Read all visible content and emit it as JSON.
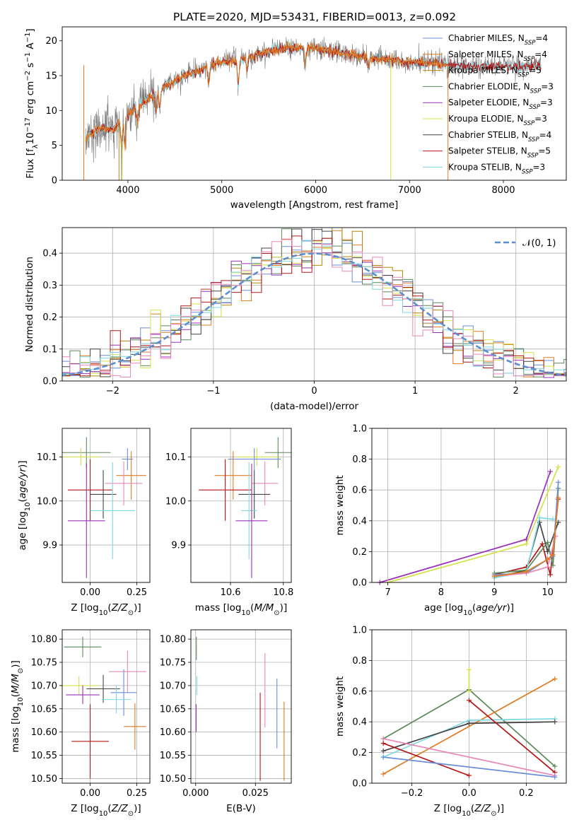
{
  "colors": {
    "Chabrier MILES": "#6a8fd8",
    "Salpeter MILES": "#e07b23",
    "Kroupa MILES": "#b8860b",
    "Chabrier ELODIE": "#5a8a5a",
    "Salpeter ELODIE": "#9a30b8",
    "Kroupa ELODIE": "#d4e04a",
    "Chabrier STELIB": "#444444",
    "Salpeter STELIB": "#b01818",
    "Kroupa STELIB": "#7fd8e0",
    "pink": "#e888b8",
    "gauss": "#5b8fd0",
    "data": "#777777"
  },
  "chart_data": [
    {
      "id": "spectrum",
      "type": "line",
      "title": "PLATE=2020, MJD=53431, FIBERID=0013, z=0.092",
      "xlabel": "wavelength [Angstrom, rest frame]",
      "ylabel": "Flux [fλ10⁻¹⁷ erg cm⁻² s⁻¹ A⁻¹]",
      "xlim": [
        3300,
        8670
      ],
      "ylim": [
        0,
        22
      ],
      "xticks": [
        "4000",
        "5000",
        "6000",
        "7000",
        "8000"
      ],
      "yticks": [
        "0",
        "5",
        "10",
        "15",
        "20"
      ],
      "legend": [
        "Chabrier MILES, N_SSP=4",
        "Salpeter MILES, N_SSP=4",
        "Kroupa MILES, N_SSP=5",
        "Chabrier ELODIE, N_SSP=3",
        "Salpeter ELODIE, N_SSP=3",
        "Kroupa ELODIE, N_SSP=3",
        "Chabrier STELIB, N_SSP=4",
        "Salpeter STELIB, N_SSP=5",
        "Kroupa STELIB, N_SSP=3"
      ],
      "continuum": [
        [
          3550,
          6
        ],
        [
          3700,
          7.5
        ],
        [
          3850,
          7.2
        ],
        [
          4000,
          9.5
        ],
        [
          4200,
          11.5
        ],
        [
          4400,
          13.5
        ],
        [
          4600,
          15
        ],
        [
          4800,
          16
        ],
        [
          5000,
          17
        ],
        [
          5200,
          17.3
        ],
        [
          5500,
          18.5
        ],
        [
          5700,
          19
        ],
        [
          6000,
          19
        ],
        [
          6300,
          18.2
        ],
        [
          6600,
          17.5
        ],
        [
          7000,
          17
        ],
        [
          7400,
          16.5
        ],
        [
          7800,
          16.3
        ],
        [
          8200,
          16.3
        ],
        [
          8400,
          16.5
        ]
      ]
    },
    {
      "id": "residuals",
      "type": "histogram",
      "xlabel": "(data-model)/error",
      "ylabel": "Normed distribution",
      "xlim": [
        -2.5,
        2.5
      ],
      "ylim": [
        0,
        0.48
      ],
      "xticks": [
        "−2",
        "−1",
        "0",
        "1",
        "2"
      ],
      "yticks": [
        "0.0",
        "0.1",
        "0.2",
        "0.3",
        "0.4"
      ],
      "legend": [
        "𝒩(0, 1)"
      ],
      "gaussian": {
        "mean": 0,
        "sigma": 1
      }
    },
    {
      "id": "age-vs-Z",
      "type": "errorbar",
      "xlabel": "Z [log10(Z/Z⊙)]",
      "ylabel": "age  [log10(age/yr)]",
      "xlim": [
        -0.15,
        0.32
      ],
      "ylim": [
        9.815,
        10.165
      ],
      "xticks": [
        "0.00",
        "0.25"
      ],
      "yticks": [
        "9.9",
        "10.0",
        "10.1"
      ],
      "points": [
        {
          "series": "Chabrier ELODIE",
          "x": -0.02,
          "xerr": 0.13,
          "y": 10.11,
          "yerr": 0.035
        },
        {
          "series": "Kroupa ELODIE",
          "x": -0.05,
          "xerr": 0.1,
          "y": 10.1,
          "yerr": 0.02
        },
        {
          "series": "Chabrier MILES",
          "x": 0.2,
          "xerr": 0.03,
          "y": 10.095,
          "yerr": 0.025
        },
        {
          "series": "Salpeter MILES",
          "x": 0.22,
          "xerr": 0.08,
          "y": 10.058,
          "yerr": 0.055
        },
        {
          "series": "pink",
          "x": 0.18,
          "xerr": 0.1,
          "y": 10.04,
          "yerr": 0.05
        },
        {
          "series": "Salpeter STELIB",
          "x": 0.0,
          "xerr": 0.12,
          "y": 10.025,
          "yerr": 0.07
        },
        {
          "series": "Chabrier STELIB",
          "x": 0.07,
          "xerr": 0.07,
          "y": 10.015,
          "yerr": 0.055
        },
        {
          "series": "Kroupa STELIB",
          "x": 0.12,
          "xerr": 0.12,
          "y": 9.978,
          "yerr": 0.11
        },
        {
          "series": "Salpeter ELODIE",
          "x": -0.02,
          "xerr": 0.1,
          "y": 9.955,
          "yerr": 0.13
        }
      ]
    },
    {
      "id": "age-vs-mass",
      "type": "errorbar",
      "xlabel": "mass [log10(M/M⊙)]",
      "ylabel": "",
      "xlim": [
        10.45,
        10.83
      ],
      "ylim": [
        9.815,
        10.165
      ],
      "xticks": [
        "10.6",
        "10.8"
      ],
      "yticks": [
        "9.9",
        "10.0",
        "10.1"
      ],
      "points": [
        {
          "series": "Chabrier ELODIE",
          "x": 10.78,
          "xerr": 0.05,
          "y": 10.11,
          "yerr": 0.035
        },
        {
          "series": "Kroupa ELODIE",
          "x": 10.7,
          "xerr": 0.08,
          "y": 10.1,
          "yerr": 0.02
        },
        {
          "series": "Chabrier MILES",
          "x": 10.69,
          "xerr": 0.1,
          "y": 10.095,
          "yerr": 0.025
        },
        {
          "series": "Salpeter MILES",
          "x": 10.61,
          "xerr": 0.07,
          "y": 10.058,
          "yerr": 0.055
        },
        {
          "series": "pink",
          "x": 10.73,
          "xerr": 0.05,
          "y": 10.04,
          "yerr": 0.05
        },
        {
          "series": "Salpeter STELIB",
          "x": 10.58,
          "xerr": 0.1,
          "y": 10.025,
          "yerr": 0.07
        },
        {
          "series": "Chabrier STELIB",
          "x": 10.69,
          "xerr": 0.06,
          "y": 10.015,
          "yerr": 0.055
        },
        {
          "series": "Kroupa STELIB",
          "x": 10.67,
          "xerr": 0.03,
          "y": 9.978,
          "yerr": 0.11
        },
        {
          "series": "Salpeter ELODIE",
          "x": 10.68,
          "xerr": 0.06,
          "y": 9.955,
          "yerr": 0.13
        }
      ]
    },
    {
      "id": "massweight-vs-age",
      "type": "line",
      "xlabel": "age  [log10(age/yr)]",
      "ylabel": "mass weight",
      "xlim": [
        6.7,
        10.35
      ],
      "ylim": [
        0,
        1
      ],
      "xticks": [
        "7",
        "8",
        "9",
        "10"
      ],
      "yticks": [
        "0.0",
        "0.2",
        "0.4",
        "0.6",
        "0.8",
        "1.0"
      ],
      "series": [
        {
          "name": "Salpeter ELODIE",
          "points": [
            [
              6.85,
              0.0
            ],
            [
              9.6,
              0.28
            ],
            [
              10.05,
              0.72
            ]
          ]
        },
        {
          "name": "Kroupa ELODIE",
          "points": [
            [
              7.0,
              0.0
            ],
            [
              9.6,
              0.25
            ],
            [
              10.2,
              0.75
            ]
          ]
        },
        {
          "name": "Chabrier STELIB",
          "points": [
            [
              9.0,
              0.03
            ],
            [
              9.6,
              0.08
            ],
            [
              9.85,
              0.39
            ],
            [
              10.0,
              0.2
            ],
            [
              10.2,
              0.39
            ]
          ]
        },
        {
          "name": "Salpeter STELIB",
          "points": [
            [
              9.0,
              0.05
            ],
            [
              9.6,
              0.1
            ],
            [
              9.9,
              0.25
            ],
            [
              10.05,
              0.05
            ],
            [
              10.2,
              0.54
            ]
          ]
        },
        {
          "name": "Chabrier ELODIE",
          "points": [
            [
              9.0,
              0.06
            ],
            [
              9.6,
              0.08
            ],
            [
              10.0,
              0.26
            ],
            [
              10.1,
              0.11
            ],
            [
              10.2,
              0.61
            ]
          ]
        },
        {
          "name": "Kroupa STELIB",
          "points": [
            [
              9.0,
              0.03
            ],
            [
              9.6,
              0.07
            ],
            [
              9.85,
              0.42
            ],
            [
              10.1,
              0.41
            ]
          ]
        },
        {
          "name": "Chabrier MILES",
          "points": [
            [
              9.0,
              0.05
            ],
            [
              9.6,
              0.06
            ],
            [
              10.0,
              0.15
            ],
            [
              10.1,
              0.17
            ],
            [
              10.2,
              0.65
            ]
          ]
        },
        {
          "name": "pink",
          "points": [
            [
              9.0,
              0.04
            ],
            [
              9.6,
              0.06
            ],
            [
              10.0,
              0.1
            ],
            [
              10.15,
              0.3
            ]
          ]
        },
        {
          "name": "Salpeter MILES",
          "points": [
            [
              9.0,
              0.04
            ],
            [
              9.6,
              0.07
            ],
            [
              10.0,
              0.15
            ],
            [
              10.1,
              0.18
            ],
            [
              10.2,
              0.55
            ]
          ]
        }
      ]
    },
    {
      "id": "mass-vs-Z",
      "type": "errorbar",
      "xlabel": "Z [log10(Z/Z⊙)]",
      "ylabel": "mass [log10(M/M⊙)]",
      "xlim": [
        -0.15,
        0.32
      ],
      "ylim": [
        10.49,
        10.82
      ],
      "xticks": [
        "0.00",
        "0.25"
      ],
      "yticks": [
        "10.50",
        "10.55",
        "10.60",
        "10.65",
        "10.70",
        "10.75",
        "10.80"
      ],
      "points": [
        {
          "series": "Chabrier ELODIE",
          "x": -0.04,
          "xerr": 0.1,
          "y": 10.783,
          "yerr": 0.022
        },
        {
          "series": "pink",
          "x": 0.2,
          "xerr": 0.1,
          "y": 10.73,
          "yerr": 0.045
        },
        {
          "series": "Kroupa ELODIE",
          "x": -0.06,
          "xerr": 0.1,
          "y": 10.7,
          "yerr": 0.02
        },
        {
          "series": "Chabrier STELIB",
          "x": 0.07,
          "xerr": 0.09,
          "y": 10.693,
          "yerr": 0.03
        },
        {
          "series": "Chabrier MILES",
          "x": 0.18,
          "xerr": 0.07,
          "y": 10.685,
          "yerr": 0.05
        },
        {
          "series": "Salpeter ELODIE",
          "x": -0.04,
          "xerr": 0.09,
          "y": 10.68,
          "yerr": 0.02
        },
        {
          "series": "Kroupa STELIB",
          "x": 0.14,
          "xerr": 0.08,
          "y": 10.67,
          "yerr": 0.03
        },
        {
          "series": "Salpeter MILES",
          "x": 0.24,
          "xerr": 0.06,
          "y": 10.612,
          "yerr": 0.05
        },
        {
          "series": "Salpeter STELIB",
          "x": 0.0,
          "xerr": 0.1,
          "y": 10.58,
          "yerr": 0.08
        }
      ]
    },
    {
      "id": "mass-vs-ebv",
      "type": "errorbar",
      "xlabel": "E(B-V)",
      "ylabel": "",
      "xlim": [
        -0.002,
        0.04
      ],
      "ylim": [
        10.49,
        10.82
      ],
      "xticks": [
        "0.000",
        "0.025"
      ],
      "yticks": [
        "10.50",
        "10.55",
        "10.60",
        "10.65",
        "10.70",
        "10.75",
        "10.80"
      ],
      "points": [
        {
          "series": "Chabrier ELODIE",
          "x": 0.0003,
          "y": 10.78,
          "yerr": 0.025
        },
        {
          "series": "Kroupa STELIB",
          "x": 0.0005,
          "y": 10.7,
          "yerr": 0.02
        },
        {
          "series": "Salpeter ELODIE",
          "x": 0.0002,
          "y": 10.63,
          "yerr": 0.03
        },
        {
          "series": "pink",
          "x": 0.029,
          "y": 10.69,
          "yerr": 0.08
        },
        {
          "series": "Salpeter STELIB",
          "x": 0.027,
          "y": 10.59,
          "yerr": 0.095
        },
        {
          "series": "Chabrier MILES",
          "x": 0.034,
          "y": 10.64,
          "yerr": 0.075
        },
        {
          "series": "Salpeter MILES",
          "x": 0.037,
          "y": 10.58,
          "yerr": 0.085
        }
      ]
    },
    {
      "id": "massweight-vs-Z",
      "type": "line",
      "xlabel": "Z [log10(Z/Z⊙)]",
      "ylabel": "mass weight",
      "xlim": [
        -0.34,
        0.34
      ],
      "ylim": [
        0,
        1
      ],
      "xticks": [
        "−0.2",
        "0.0",
        "0.2"
      ],
      "yticks": [
        "0.0",
        "0.2",
        "0.4",
        "0.6",
        "0.8",
        "1.0"
      ],
      "series": [
        {
          "name": "Chabrier ELODIE",
          "points": [
            [
              -0.3,
              0.29
            ],
            [
              0.0,
              0.61
            ],
            [
              0.3,
              0.11
            ]
          ]
        },
        {
          "name": "Salpeter MILES",
          "points": [
            [
              -0.3,
              0.06
            ],
            [
              0.3,
              0.68
            ]
          ]
        },
        {
          "name": "Kroupa STELIB",
          "points": [
            [
              -0.3,
              0.17
            ],
            [
              0.0,
              0.41
            ],
            [
              0.3,
              0.42
            ]
          ]
        },
        {
          "name": "Chabrier STELIB",
          "points": [
            [
              -0.3,
              0.21
            ],
            [
              0.0,
              0.39
            ],
            [
              0.3,
              0.4
            ]
          ]
        },
        {
          "name": "Salpeter STELIB",
          "points": [
            [
              -0.3,
              0.26
            ],
            [
              0.0,
              0.05
            ]
          ]
        },
        {
          "name": "Salpeter STELIB",
          "points": [
            [
              0.0,
              0.54
            ],
            [
              0.3,
              0.07
            ]
          ]
        },
        {
          "name": "pink",
          "points": [
            [
              -0.3,
              0.29
            ],
            [
              0.3,
              0.05
            ]
          ]
        },
        {
          "name": "Chabrier MILES",
          "points": [
            [
              -0.3,
              0.17
            ],
            [
              0.3,
              0.04
            ]
          ]
        },
        {
          "name": "Kroupa ELODIE",
          "points": [
            [
              0.0,
              0.74
            ],
            [
              0.0,
              0.6
            ]
          ]
        }
      ]
    }
  ]
}
